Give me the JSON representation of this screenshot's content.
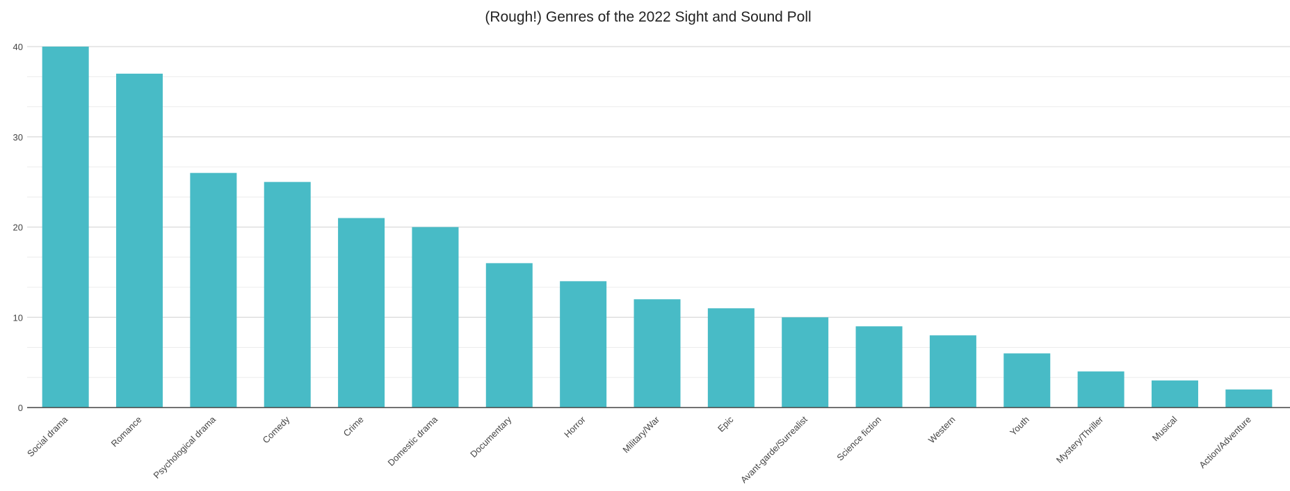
{
  "chart_data": {
    "type": "bar",
    "title": "(Rough!) Genres of the 2022 Sight and Sound Poll",
    "xlabel": "",
    "ylabel": "",
    "categories": [
      "Social drama",
      "Romance",
      "Psychological drama",
      "Comedy",
      "Crime",
      "Domestic drama",
      "Documentary",
      "Horror",
      "Military/War",
      "Epic",
      "Avant-garde/Surrealist",
      "Science fiction",
      "Western",
      "Youth",
      "Mystery/Thriller",
      "Musical",
      "Action/Adventure"
    ],
    "values": [
      40,
      37,
      26,
      25,
      21,
      20,
      16,
      14,
      12,
      11,
      10,
      9,
      8,
      6,
      4,
      3,
      2
    ],
    "ylim": [
      0,
      40
    ],
    "yticks": [
      "0",
      "10",
      "20",
      "30",
      "40"
    ],
    "grid": true,
    "legend": "none",
    "bar_color": "#48BBC6"
  }
}
